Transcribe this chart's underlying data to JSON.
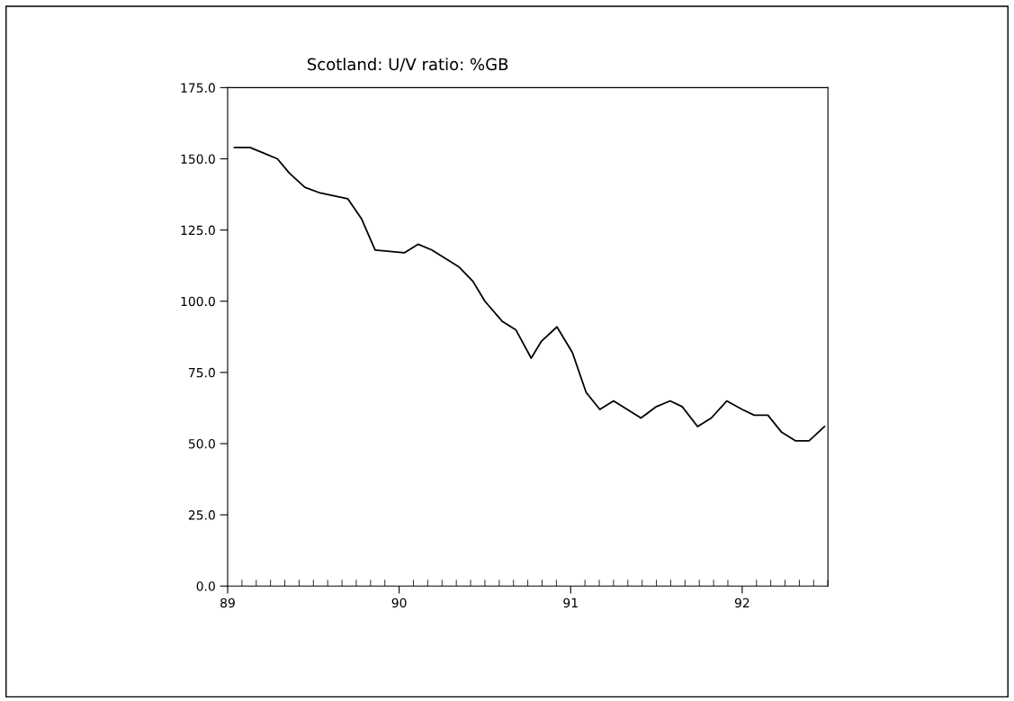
{
  "chart_data": {
    "type": "line",
    "title": "Scotland: U/V ratio: %GB",
    "x": [
      89.04,
      89.13,
      89.21,
      89.29,
      89.36,
      89.45,
      89.54,
      89.7,
      89.78,
      89.86,
      90.03,
      90.11,
      90.19,
      90.27,
      90.35,
      90.43,
      90.5,
      90.6,
      90.68,
      90.77,
      90.83,
      90.92,
      91.01,
      91.09,
      91.17,
      91.25,
      91.33,
      91.41,
      91.5,
      91.58,
      91.65,
      91.74,
      91.82,
      91.91,
      92.0,
      92.07,
      92.15,
      92.23,
      92.31,
      92.39,
      92.48
    ],
    "series": [
      {
        "color": "#000000",
        "values": [
          154,
          154,
          152,
          150,
          145,
          140,
          138,
          136,
          129,
          118,
          117,
          120,
          118,
          115,
          112,
          107,
          100,
          93,
          90,
          80,
          86,
          91,
          82,
          68,
          62,
          65,
          62,
          59,
          63,
          65,
          63,
          56,
          59,
          65,
          62,
          60,
          60,
          54,
          51,
          51,
          56
        ]
      }
    ],
    "xlim": [
      89,
      92.5
    ],
    "xticks": [
      89,
      90,
      91,
      92
    ],
    "ylim": [
      0,
      175
    ],
    "yticks": [
      {
        "value": 0,
        "label": "0.0"
      },
      {
        "value": 25,
        "label": "25.0"
      },
      {
        "value": 50,
        "label": "50.0"
      },
      {
        "value": 75,
        "label": "75.0"
      },
      {
        "value": 100,
        "label": "100.0"
      },
      {
        "value": 125,
        "label": "125.0"
      },
      {
        "value": 150,
        "label": "150.0"
      },
      {
        "value": 175,
        "label": "175.0"
      }
    ],
    "grid": false,
    "legend": false,
    "marker": "none",
    "line_style": "solid"
  }
}
